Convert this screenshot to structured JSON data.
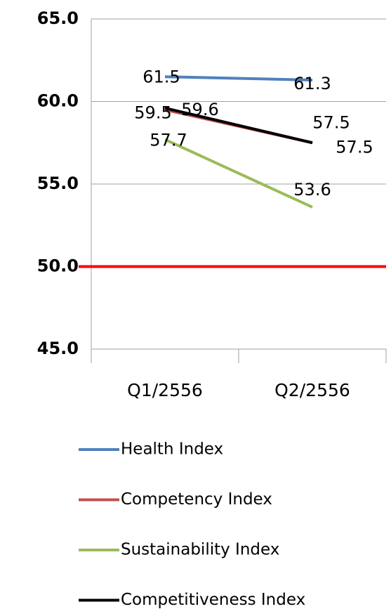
{
  "chart_data": {
    "type": "line",
    "categories": [
      "Q1/2556",
      "Q2/2556"
    ],
    "series": [
      {
        "name": "Health Index",
        "color": "#4F81BD",
        "values": [
          61.5,
          61.3
        ]
      },
      {
        "name": "Competency Index",
        "color": "#C0504D",
        "values": [
          59.5,
          57.5
        ]
      },
      {
        "name": "Sustainability Index",
        "color": "#9BBB59",
        "values": [
          57.7,
          53.6
        ]
      },
      {
        "name": "Competitiveness Index",
        "color": "#000000",
        "values": [
          59.6,
          57.5
        ]
      }
    ],
    "ylim": [
      45,
      65
    ],
    "yticks": [
      {
        "value": 45,
        "label": "45.0"
      },
      {
        "value": 50,
        "label": "50.0"
      },
      {
        "value": 55,
        "label": "55.0"
      },
      {
        "value": 60,
        "label": "60.0"
      },
      {
        "value": 65,
        "label": "65.0"
      }
    ],
    "grid": true,
    "reference_line": {
      "value": 50,
      "color": "#FF0000"
    },
    "legend": "bottom"
  }
}
